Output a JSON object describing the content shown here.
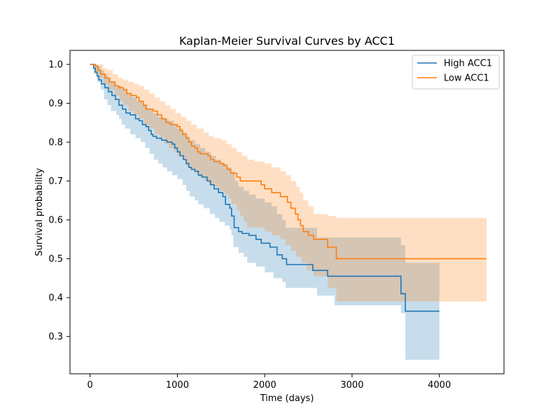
{
  "chart_data": {
    "type": "line",
    "title": "Kaplan-Meier Survival Curves by ACC1",
    "xlabel": "Time (days)",
    "ylabel": "Survival probability",
    "xlim": [
      -230,
      4740
    ],
    "ylim": [
      0.204,
      1.036
    ],
    "xticks": [
      0,
      1000,
      2000,
      3000,
      4000
    ],
    "yticks": [
      0.3,
      0.4,
      0.5,
      0.6,
      0.7,
      0.8,
      0.9,
      1.0
    ],
    "grid": false,
    "legend_position": "top-right",
    "series": [
      {
        "name": "High ACC1",
        "color": "#1f77b4",
        "step": [
          [
            0,
            1.0
          ],
          [
            40,
            0.99
          ],
          [
            60,
            0.98
          ],
          [
            80,
            0.97
          ],
          [
            100,
            0.96
          ],
          [
            130,
            0.95
          ],
          [
            170,
            0.94
          ],
          [
            210,
            0.93
          ],
          [
            250,
            0.92
          ],
          [
            290,
            0.91
          ],
          [
            330,
            0.895
          ],
          [
            370,
            0.885
          ],
          [
            410,
            0.875
          ],
          [
            460,
            0.87
          ],
          [
            520,
            0.86
          ],
          [
            560,
            0.855
          ],
          [
            600,
            0.845
          ],
          [
            640,
            0.84
          ],
          [
            670,
            0.83
          ],
          [
            700,
            0.82
          ],
          [
            720,
            0.815
          ],
          [
            760,
            0.81
          ],
          [
            820,
            0.805
          ],
          [
            880,
            0.8
          ],
          [
            940,
            0.795
          ],
          [
            970,
            0.785
          ],
          [
            1000,
            0.775
          ],
          [
            1030,
            0.765
          ],
          [
            1070,
            0.755
          ],
          [
            1100,
            0.745
          ],
          [
            1130,
            0.735
          ],
          [
            1160,
            0.73
          ],
          [
            1200,
            0.725
          ],
          [
            1240,
            0.715
          ],
          [
            1280,
            0.71
          ],
          [
            1340,
            0.7
          ],
          [
            1380,
            0.69
          ],
          [
            1420,
            0.68
          ],
          [
            1470,
            0.67
          ],
          [
            1520,
            0.66
          ],
          [
            1550,
            0.64
          ],
          [
            1580,
            0.64
          ],
          [
            1600,
            0.63
          ],
          [
            1620,
            0.61
          ],
          [
            1650,
            0.58
          ],
          [
            1700,
            0.57
          ],
          [
            1740,
            0.565
          ],
          [
            1820,
            0.56
          ],
          [
            1900,
            0.55
          ],
          [
            1960,
            0.54
          ],
          [
            2060,
            0.53
          ],
          [
            2140,
            0.51
          ],
          [
            2200,
            0.5
          ],
          [
            2250,
            0.485
          ],
          [
            2550,
            0.47
          ],
          [
            2720,
            0.455
          ],
          [
            3560,
            0.41
          ],
          [
            3610,
            0.365
          ],
          [
            4000,
            0.365
          ]
        ],
        "ci_lower": [
          [
            0,
            1.0
          ],
          [
            40,
            0.975
          ],
          [
            80,
            0.955
          ],
          [
            120,
            0.935
          ],
          [
            160,
            0.91
          ],
          [
            200,
            0.895
          ],
          [
            240,
            0.88
          ],
          [
            300,
            0.87
          ],
          [
            330,
            0.86
          ],
          [
            360,
            0.845
          ],
          [
            400,
            0.835
          ],
          [
            460,
            0.82
          ],
          [
            520,
            0.81
          ],
          [
            580,
            0.8
          ],
          [
            630,
            0.785
          ],
          [
            680,
            0.77
          ],
          [
            730,
            0.755
          ],
          [
            780,
            0.745
          ],
          [
            830,
            0.735
          ],
          [
            880,
            0.725
          ],
          [
            940,
            0.715
          ],
          [
            1000,
            0.705
          ],
          [
            1060,
            0.69
          ],
          [
            1100,
            0.675
          ],
          [
            1140,
            0.66
          ],
          [
            1200,
            0.65
          ],
          [
            1240,
            0.64
          ],
          [
            1300,
            0.63
          ],
          [
            1370,
            0.615
          ],
          [
            1430,
            0.605
          ],
          [
            1480,
            0.595
          ],
          [
            1540,
            0.585
          ],
          [
            1600,
            0.575
          ],
          [
            1620,
            0.56
          ],
          [
            1640,
            0.53
          ],
          [
            1700,
            0.515
          ],
          [
            1760,
            0.505
          ],
          [
            1800,
            0.49
          ],
          [
            1900,
            0.48
          ],
          [
            2000,
            0.465
          ],
          [
            2100,
            0.45
          ],
          [
            2200,
            0.44
          ],
          [
            2240,
            0.425
          ],
          [
            2600,
            0.405
          ],
          [
            2800,
            0.38
          ],
          [
            3560,
            0.36
          ],
          [
            3610,
            0.24
          ],
          [
            4000,
            0.24
          ]
        ],
        "ci_upper": [
          [
            0,
            1.0
          ],
          [
            40,
            1.0
          ],
          [
            80,
            0.995
          ],
          [
            120,
            0.985
          ],
          [
            160,
            0.975
          ],
          [
            200,
            0.965
          ],
          [
            240,
            0.955
          ],
          [
            300,
            0.945
          ],
          [
            360,
            0.935
          ],
          [
            420,
            0.925
          ],
          [
            480,
            0.915
          ],
          [
            540,
            0.905
          ],
          [
            600,
            0.895
          ],
          [
            660,
            0.885
          ],
          [
            720,
            0.875
          ],
          [
            780,
            0.865
          ],
          [
            840,
            0.86
          ],
          [
            900,
            0.855
          ],
          [
            960,
            0.845
          ],
          [
            1000,
            0.835
          ],
          [
            1060,
            0.825
          ],
          [
            1100,
            0.815
          ],
          [
            1140,
            0.805
          ],
          [
            1200,
            0.795
          ],
          [
            1260,
            0.785
          ],
          [
            1320,
            0.775
          ],
          [
            1380,
            0.765
          ],
          [
            1440,
            0.755
          ],
          [
            1500,
            0.745
          ],
          [
            1560,
            0.735
          ],
          [
            1620,
            0.725
          ],
          [
            1660,
            0.7
          ],
          [
            1700,
            0.685
          ],
          [
            1760,
            0.675
          ],
          [
            1820,
            0.665
          ],
          [
            1900,
            0.655
          ],
          [
            2000,
            0.645
          ],
          [
            2080,
            0.635
          ],
          [
            2140,
            0.615
          ],
          [
            2200,
            0.6
          ],
          [
            2240,
            0.58
          ],
          [
            2600,
            0.555
          ],
          [
            2800,
            0.555
          ],
          [
            3300,
            0.555
          ],
          [
            3560,
            0.535
          ],
          [
            3610,
            0.49
          ],
          [
            4000,
            0.49
          ]
        ]
      },
      {
        "name": "Low ACC1",
        "color": "#ff7f0e",
        "step": [
          [
            0,
            1.0
          ],
          [
            60,
            0.995
          ],
          [
            90,
            0.985
          ],
          [
            120,
            0.975
          ],
          [
            170,
            0.965
          ],
          [
            220,
            0.955
          ],
          [
            280,
            0.945
          ],
          [
            330,
            0.94
          ],
          [
            380,
            0.935
          ],
          [
            420,
            0.925
          ],
          [
            470,
            0.92
          ],
          [
            530,
            0.915
          ],
          [
            560,
            0.905
          ],
          [
            610,
            0.895
          ],
          [
            640,
            0.885
          ],
          [
            720,
            0.88
          ],
          [
            770,
            0.87
          ],
          [
            820,
            0.86
          ],
          [
            870,
            0.85
          ],
          [
            920,
            0.845
          ],
          [
            1000,
            0.84
          ],
          [
            1030,
            0.83
          ],
          [
            1060,
            0.82
          ],
          [
            1100,
            0.81
          ],
          [
            1130,
            0.8
          ],
          [
            1160,
            0.79
          ],
          [
            1200,
            0.785
          ],
          [
            1230,
            0.775
          ],
          [
            1260,
            0.77
          ],
          [
            1350,
            0.765
          ],
          [
            1380,
            0.755
          ],
          [
            1420,
            0.75
          ],
          [
            1490,
            0.745
          ],
          [
            1530,
            0.74
          ],
          [
            1570,
            0.73
          ],
          [
            1610,
            0.72
          ],
          [
            1680,
            0.71
          ],
          [
            1720,
            0.7
          ],
          [
            1960,
            0.69
          ],
          [
            2000,
            0.68
          ],
          [
            2080,
            0.67
          ],
          [
            2180,
            0.66
          ],
          [
            2260,
            0.645
          ],
          [
            2300,
            0.63
          ],
          [
            2350,
            0.615
          ],
          [
            2380,
            0.6
          ],
          [
            2410,
            0.585
          ],
          [
            2440,
            0.57
          ],
          [
            2500,
            0.56
          ],
          [
            2560,
            0.55
          ],
          [
            2720,
            0.53
          ],
          [
            2820,
            0.5
          ],
          [
            4540,
            0.5
          ]
        ],
        "ci_lower": [
          [
            0,
            1.0
          ],
          [
            60,
            0.98
          ],
          [
            100,
            0.965
          ],
          [
            150,
            0.95
          ],
          [
            200,
            0.935
          ],
          [
            280,
            0.92
          ],
          [
            340,
            0.905
          ],
          [
            380,
            0.895
          ],
          [
            440,
            0.88
          ],
          [
            500,
            0.87
          ],
          [
            560,
            0.86
          ],
          [
            620,
            0.845
          ],
          [
            680,
            0.835
          ],
          [
            740,
            0.82
          ],
          [
            800,
            0.81
          ],
          [
            850,
            0.795
          ],
          [
            900,
            0.785
          ],
          [
            960,
            0.775
          ],
          [
            1000,
            0.765
          ],
          [
            1050,
            0.755
          ],
          [
            1100,
            0.74
          ],
          [
            1150,
            0.73
          ],
          [
            1200,
            0.72
          ],
          [
            1260,
            0.71
          ],
          [
            1300,
            0.7
          ],
          [
            1360,
            0.69
          ],
          [
            1420,
            0.685
          ],
          [
            1480,
            0.675
          ],
          [
            1540,
            0.665
          ],
          [
            1580,
            0.655
          ],
          [
            1620,
            0.64
          ],
          [
            1680,
            0.625
          ],
          [
            1720,
            0.61
          ],
          [
            1760,
            0.595
          ],
          [
            1800,
            0.58
          ],
          [
            2000,
            0.57
          ],
          [
            2080,
            0.56
          ],
          [
            2180,
            0.55
          ],
          [
            2240,
            0.535
          ],
          [
            2300,
            0.52
          ],
          [
            2360,
            0.505
          ],
          [
            2420,
            0.49
          ],
          [
            2480,
            0.47
          ],
          [
            2560,
            0.455
          ],
          [
            2720,
            0.425
          ],
          [
            2820,
            0.39
          ],
          [
            4540,
            0.39
          ]
        ],
        "ci_upper": [
          [
            0,
            1.0
          ],
          [
            60,
            1.0
          ],
          [
            100,
            1.0
          ],
          [
            150,
            0.99
          ],
          [
            200,
            0.985
          ],
          [
            260,
            0.975
          ],
          [
            320,
            0.965
          ],
          [
            380,
            0.96
          ],
          [
            440,
            0.955
          ],
          [
            500,
            0.95
          ],
          [
            560,
            0.945
          ],
          [
            620,
            0.935
          ],
          [
            680,
            0.925
          ],
          [
            740,
            0.915
          ],
          [
            800,
            0.905
          ],
          [
            860,
            0.895
          ],
          [
            920,
            0.885
          ],
          [
            980,
            0.875
          ],
          [
            1040,
            0.865
          ],
          [
            1100,
            0.855
          ],
          [
            1160,
            0.845
          ],
          [
            1220,
            0.835
          ],
          [
            1300,
            0.825
          ],
          [
            1360,
            0.815
          ],
          [
            1420,
            0.81
          ],
          [
            1500,
            0.805
          ],
          [
            1560,
            0.795
          ],
          [
            1620,
            0.785
          ],
          [
            1680,
            0.775
          ],
          [
            1740,
            0.765
          ],
          [
            1800,
            0.755
          ],
          [
            1880,
            0.75
          ],
          [
            2000,
            0.745
          ],
          [
            2080,
            0.735
          ],
          [
            2180,
            0.725
          ],
          [
            2240,
            0.715
          ],
          [
            2300,
            0.7
          ],
          [
            2360,
            0.685
          ],
          [
            2400,
            0.67
          ],
          [
            2440,
            0.65
          ],
          [
            2500,
            0.635
          ],
          [
            2560,
            0.615
          ],
          [
            2720,
            0.61
          ],
          [
            2820,
            0.605
          ],
          [
            4540,
            0.605
          ]
        ]
      }
    ]
  }
}
